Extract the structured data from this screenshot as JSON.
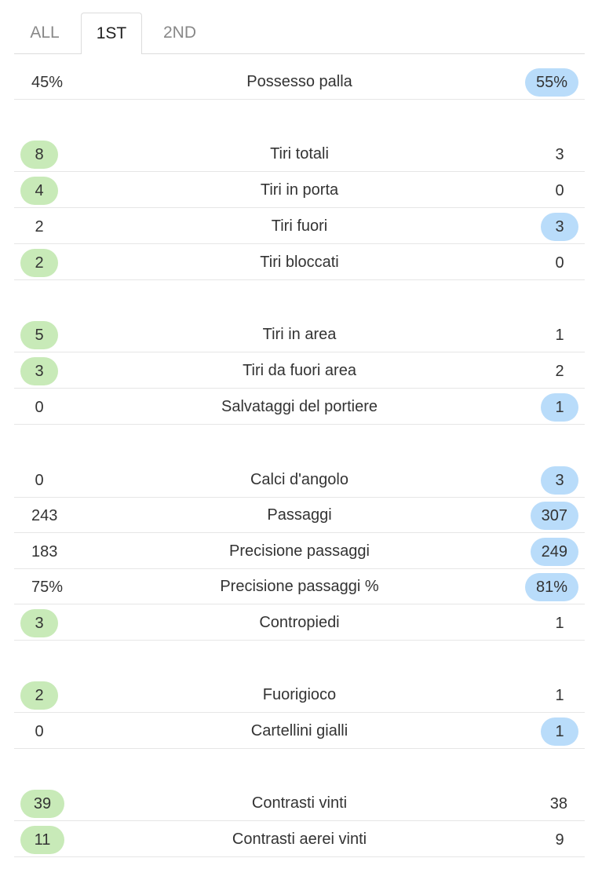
{
  "tabs": [
    {
      "label": "ALL",
      "active": false
    },
    {
      "label": "1ST",
      "active": true
    },
    {
      "label": "2ND",
      "active": false
    }
  ],
  "colors": {
    "home_highlight": "#c8eab8",
    "away_highlight": "#b9dcfa"
  },
  "stats": [
    {
      "label": "Possesso palla",
      "home": "45%",
      "away": "55%",
      "highlight": "away"
    },
    {
      "label": "Tiri totali",
      "home": "8",
      "away": "3",
      "highlight": "home"
    },
    {
      "label": "Tiri in porta",
      "home": "4",
      "away": "0",
      "highlight": "home"
    },
    {
      "label": "Tiri fuori",
      "home": "2",
      "away": "3",
      "highlight": "away"
    },
    {
      "label": "Tiri bloccati",
      "home": "2",
      "away": "0",
      "highlight": "home"
    },
    {
      "label": "Tiri in area",
      "home": "5",
      "away": "1",
      "highlight": "home"
    },
    {
      "label": "Tiri da fuori area",
      "home": "3",
      "away": "2",
      "highlight": "home"
    },
    {
      "label": "Salvataggi del portiere",
      "home": "0",
      "away": "1",
      "highlight": "away"
    },
    {
      "label": "Calci d'angolo",
      "home": "0",
      "away": "3",
      "highlight": "away"
    },
    {
      "label": "Passaggi",
      "home": "243",
      "away": "307",
      "highlight": "away"
    },
    {
      "label": "Precisione passaggi",
      "home": "183",
      "away": "249",
      "highlight": "away"
    },
    {
      "label": "Precisione passaggi %",
      "home": "75%",
      "away": "81%",
      "highlight": "away"
    },
    {
      "label": "Contropiedi",
      "home": "3",
      "away": "1",
      "highlight": "home"
    },
    {
      "label": "Fuorigioco",
      "home": "2",
      "away": "1",
      "highlight": "home"
    },
    {
      "label": "Cartellini gialli",
      "home": "0",
      "away": "1",
      "highlight": "away"
    },
    {
      "label": "Contrasti vinti",
      "home": "39",
      "away": "38",
      "highlight": "home"
    },
    {
      "label": "Contrasti aerei vinti",
      "home": "11",
      "away": "9",
      "highlight": "home"
    }
  ]
}
